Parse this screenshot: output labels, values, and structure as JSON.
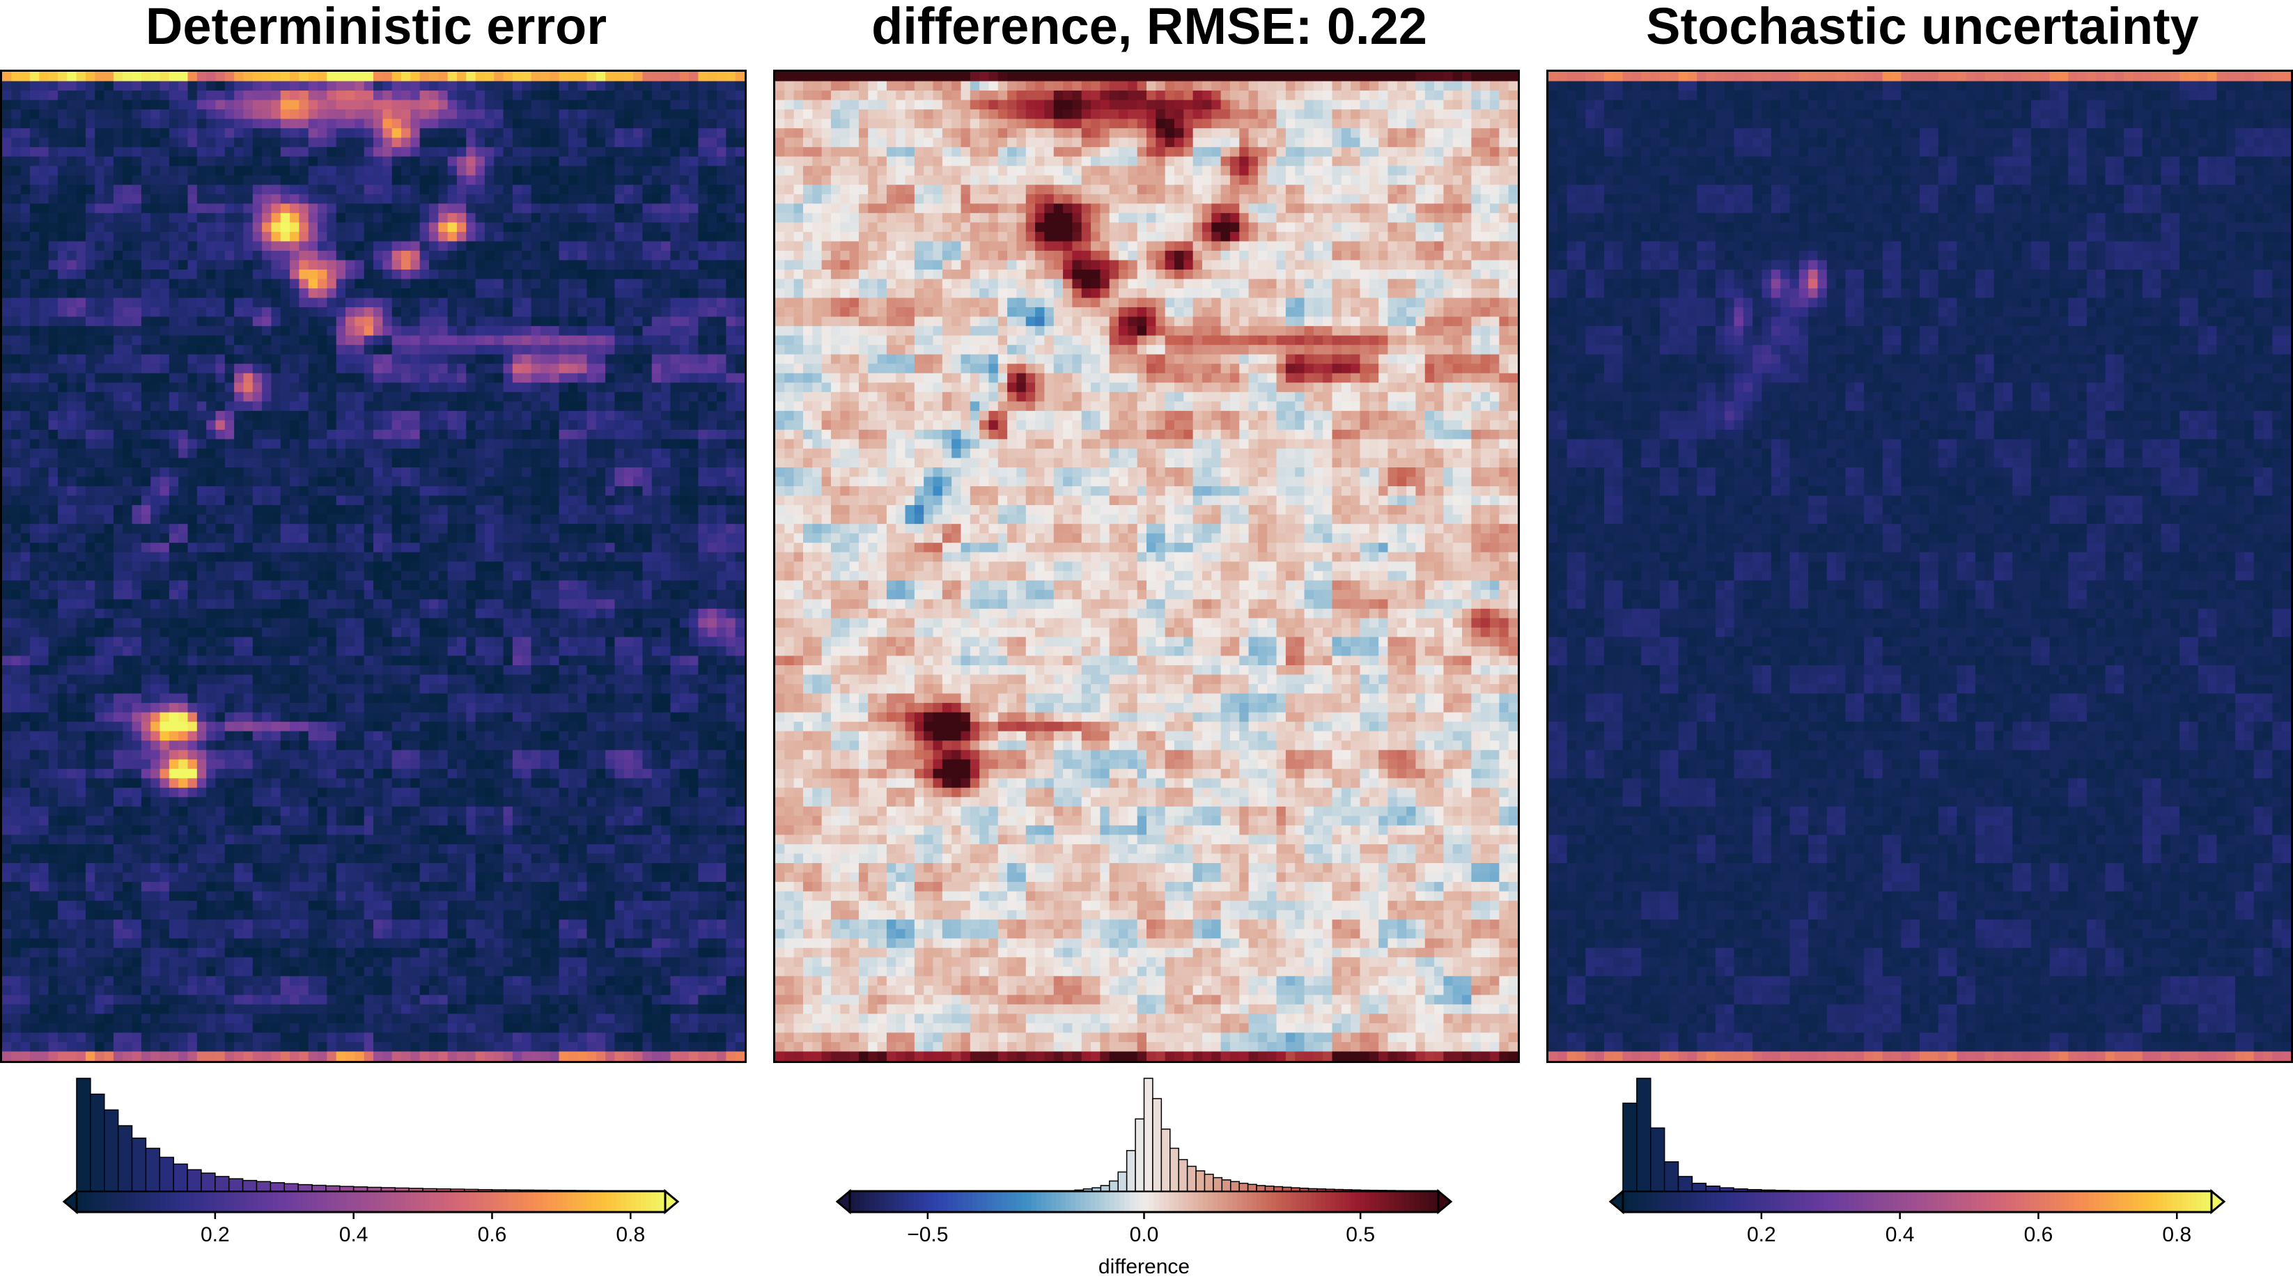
{
  "chart_data": [
    {
      "type": "heatmap",
      "title": "Deterministic error",
      "colormap": "thermal",
      "color_range": [
        0,
        0.85
      ],
      "colorbar": {
        "ticks": [
          0.2,
          0.4,
          0.6,
          0.8
        ],
        "tick_labels": [
          "0.2",
          "0.4",
          "0.6",
          "0.8"
        ],
        "label": "",
        "extend": "both"
      },
      "histogram": {
        "bin_width": 0.02,
        "relative_counts": [
          1.0,
          0.86,
          0.72,
          0.58,
          0.47,
          0.38,
          0.3,
          0.24,
          0.19,
          0.16,
          0.13,
          0.11,
          0.095,
          0.085,
          0.075,
          0.066,
          0.058,
          0.052,
          0.047,
          0.042,
          0.038,
          0.034,
          0.031,
          0.028,
          0.025,
          0.022,
          0.02,
          0.018,
          0.016,
          0.014,
          0.012,
          0.011,
          0.01,
          0.009,
          0.008,
          0.007,
          0.006,
          0.005,
          0.004,
          0.004,
          0.003,
          0.003
        ]
      }
    },
    {
      "type": "heatmap",
      "title": "difference, RMSE: 0.22",
      "colormap": "balance",
      "color_range": [
        -0.68,
        0.68
      ],
      "colorbar": {
        "ticks": [
          -0.5,
          0.0,
          0.5
        ],
        "tick_labels": [
          "−0.5",
          "0.0",
          "0.5"
        ],
        "label": "difference",
        "extend": "both"
      },
      "histogram": {
        "bin_width": 0.02,
        "bin_start": -0.16,
        "relative_counts": [
          0.01,
          0.02,
          0.03,
          0.05,
          0.09,
          0.17,
          0.36,
          0.64,
          1.0,
          0.82,
          0.55,
          0.38,
          0.28,
          0.22,
          0.18,
          0.15,
          0.12,
          0.1,
          0.085,
          0.07,
          0.06,
          0.05,
          0.045,
          0.04,
          0.035,
          0.03,
          0.026,
          0.022,
          0.02,
          0.017,
          0.015,
          0.013,
          0.011,
          0.009,
          0.008,
          0.007,
          0.006,
          0.005
        ]
      }
    },
    {
      "type": "heatmap",
      "title": "Stochastic uncertainty",
      "colormap": "thermal",
      "color_range": [
        0,
        0.85
      ],
      "colorbar": {
        "ticks": [
          0.2,
          0.4,
          0.6,
          0.8
        ],
        "tick_labels": [
          "0.2",
          "0.4",
          "0.6",
          "0.8"
        ],
        "label": "",
        "extend": "both"
      },
      "histogram": {
        "bin_width": 0.02,
        "relative_counts": [
          0.78,
          1.0,
          0.56,
          0.26,
          0.13,
          0.07,
          0.045,
          0.03,
          0.02,
          0.014,
          0.01,
          0.007,
          0.005,
          0.004,
          0.003,
          0.002
        ]
      }
    }
  ]
}
